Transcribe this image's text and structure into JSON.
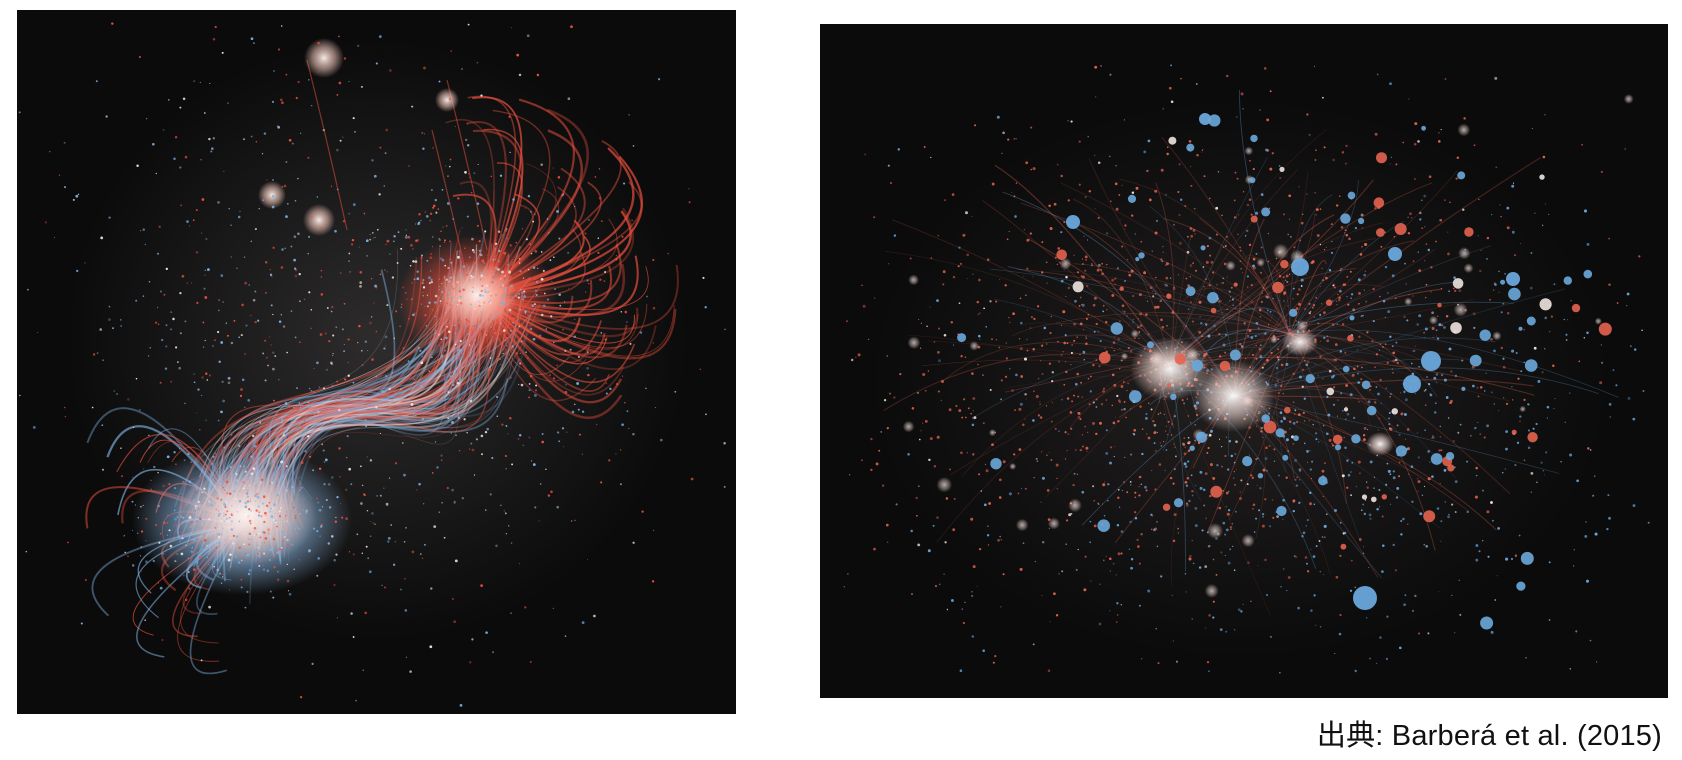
{
  "figures": [
    {
      "id": "left",
      "description_icon": "network-graph-icon",
      "colors": {
        "background": "#0b0b0b",
        "red": "#f0513f",
        "blue": "#7fb2e3",
        "white": "#f2e6e2"
      }
    },
    {
      "id": "right",
      "description_icon": "network-graph-icon",
      "colors": {
        "background": "#0b0b0b",
        "red": "#e4634f",
        "blue": "#6aa8dc",
        "white": "#efe4df"
      }
    }
  ],
  "caption": {
    "text": "出典: Barberá et al. (2015)"
  }
}
